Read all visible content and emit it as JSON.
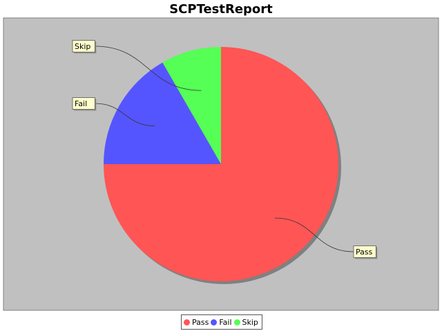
{
  "chart_data": {
    "type": "pie",
    "title": "SCPTestReport",
    "categories": [
      "Pass",
      "Fail",
      "Skip"
    ],
    "values": [
      75,
      16.7,
      8.3
    ],
    "colors": [
      "#ff5555",
      "#5555ff",
      "#55ff55"
    ],
    "legend": "bottom-center",
    "plot_background": "#c0c0c0"
  }
}
